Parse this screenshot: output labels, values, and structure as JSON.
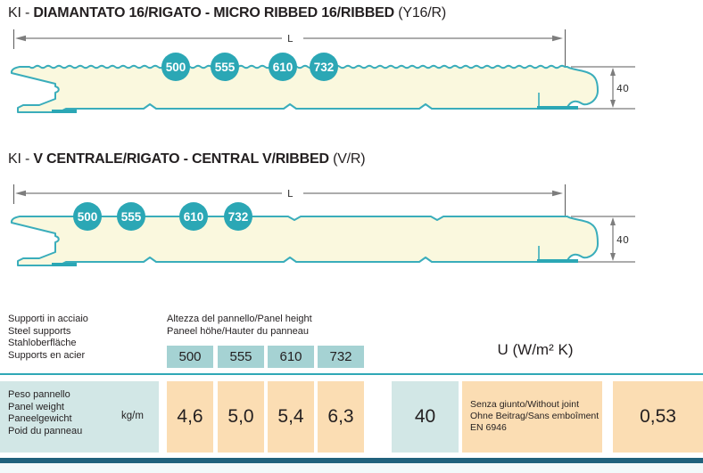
{
  "colors": {
    "panel_outline": "#3aadbb",
    "panel_fill": "#faf8de",
    "circle_fill": "#2ba7b5",
    "header_cell": "#a5d2d3",
    "light_teal_cell": "#d2e7e6",
    "peach_cell": "#fbddb3",
    "rule": "#2fa8b6",
    "bottom_bar": "#20617c",
    "text": "#231f20"
  },
  "sections": [
    {
      "title_prefix": "KI - ",
      "title_main": "DIAMANTATO 16/RIGATO - MICRO RIBBED 16/RIBBED",
      "title_code": " (Y16/R)",
      "circles": [
        "500",
        "555",
        "610",
        "732"
      ],
      "length_label": "L",
      "thickness_label": "40"
    },
    {
      "title_prefix": "KI - ",
      "title_main": "V CENTRALE/RIGATO - CENTRAL V/RIBBED",
      "title_code": " (V/R)",
      "circles": [
        "500",
        "555",
        "610",
        "732"
      ],
      "length_label": "L",
      "thickness_label": "40"
    }
  ],
  "table": {
    "supports_lines": [
      "Supporti in acciaio",
      "Steel supports",
      "Stahloberfläche",
      "Supports en acier"
    ],
    "height_header_line1": "Altezza del pannello/Panel height",
    "height_header_line2": "Paneel höhe/Hauter du panneau",
    "heights": [
      "500",
      "555",
      "610",
      "732"
    ],
    "u_title": "U (W/m² K)",
    "weight_lines": [
      "Peso pannello",
      "Panel weight",
      "Paneelgewicht",
      "Poid du panneau"
    ],
    "weight_unit": "kg/m",
    "weights": [
      "4,6",
      "5,0",
      "5,4",
      "6,3"
    ],
    "u_thickness": "40",
    "joint_lines": [
      "Senza giunto/Without joint",
      "Ohne Beitrag/Sans emboîment",
      "EN 6946"
    ],
    "u_value": "0,53"
  }
}
